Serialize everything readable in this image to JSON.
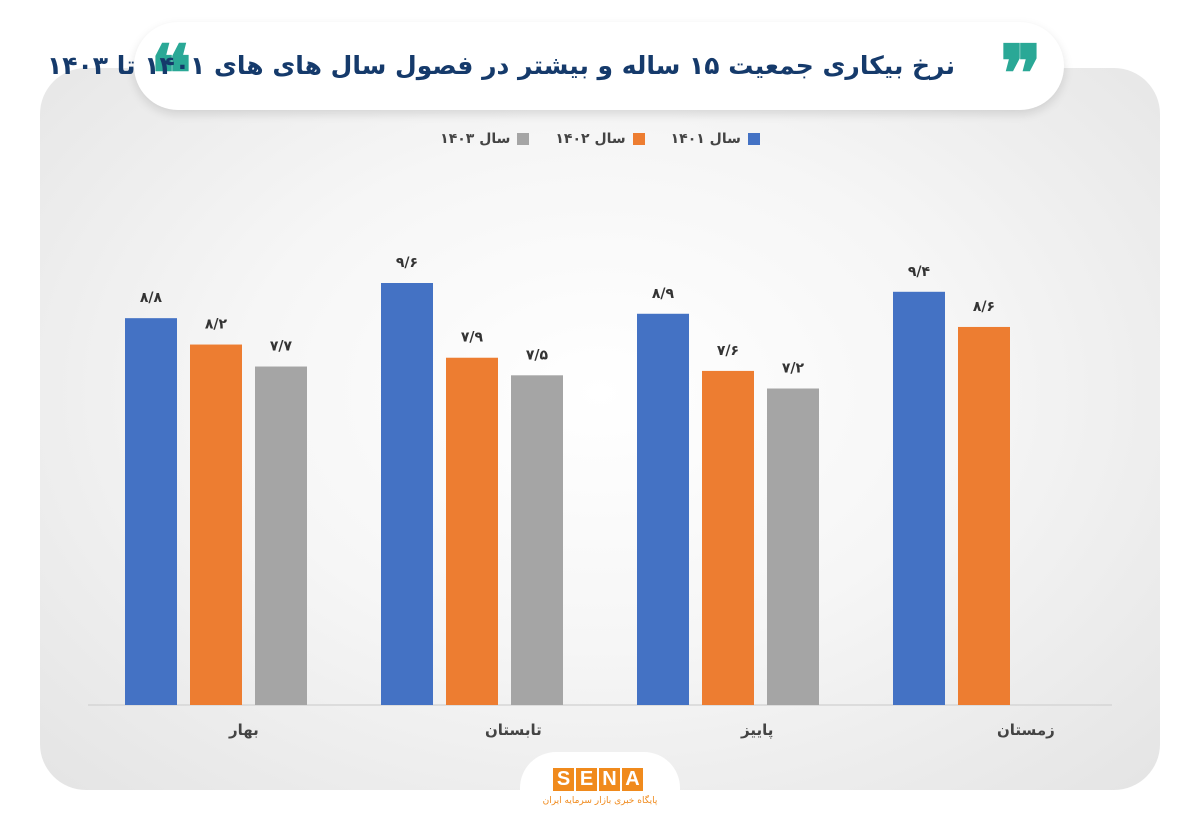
{
  "header": {
    "title": "نرخ بیکاری جمعیت ۱۵ ساله و بیشتر در فصول سال های های ۱۴۰۱ تا ۱۴۰۳",
    "quote_open": "❝",
    "quote_close": "❞",
    "quote_color": "#2aa896"
  },
  "chart_data": {
    "type": "bar",
    "title": "نرخ بیکاری جمعیت ۱۵ ساله و بیشتر در فصول سال های های ۱۴۰۱ تا ۱۴۰۳",
    "categories": [
      "بهار",
      "تابستان",
      "پاییز",
      "زمستان"
    ],
    "series": [
      {
        "name": "سال ۱۴۰۱",
        "color": "#4472c4",
        "values": [
          8.8,
          9.6,
          8.9,
          9.4
        ],
        "labels": [
          "۸/۸",
          "۹/۶",
          "۸/۹",
          "۹/۴"
        ]
      },
      {
        "name": "سال ۱۴۰۲",
        "color": "#ed7d31",
        "values": [
          8.2,
          7.9,
          7.6,
          8.6
        ],
        "labels": [
          "۸/۲",
          "۷/۹",
          "۷/۶",
          "۸/۶"
        ]
      },
      {
        "name": "سال ۱۴۰۳",
        "color": "#a5a5a5",
        "values": [
          7.7,
          7.5,
          7.2,
          null
        ],
        "labels": [
          "۷/۷",
          "۷/۵",
          "۷/۲",
          null
        ]
      }
    ],
    "ylim": [
      0,
      9.6
    ],
    "grid": false,
    "legend_position": "top",
    "xlabel": "",
    "ylabel": ""
  },
  "logo": {
    "letters": [
      "S",
      "E",
      "N",
      "A"
    ],
    "subtitle": "پایگاه خبری بازار سرمایه ایران",
    "color": "#f08a1c"
  }
}
